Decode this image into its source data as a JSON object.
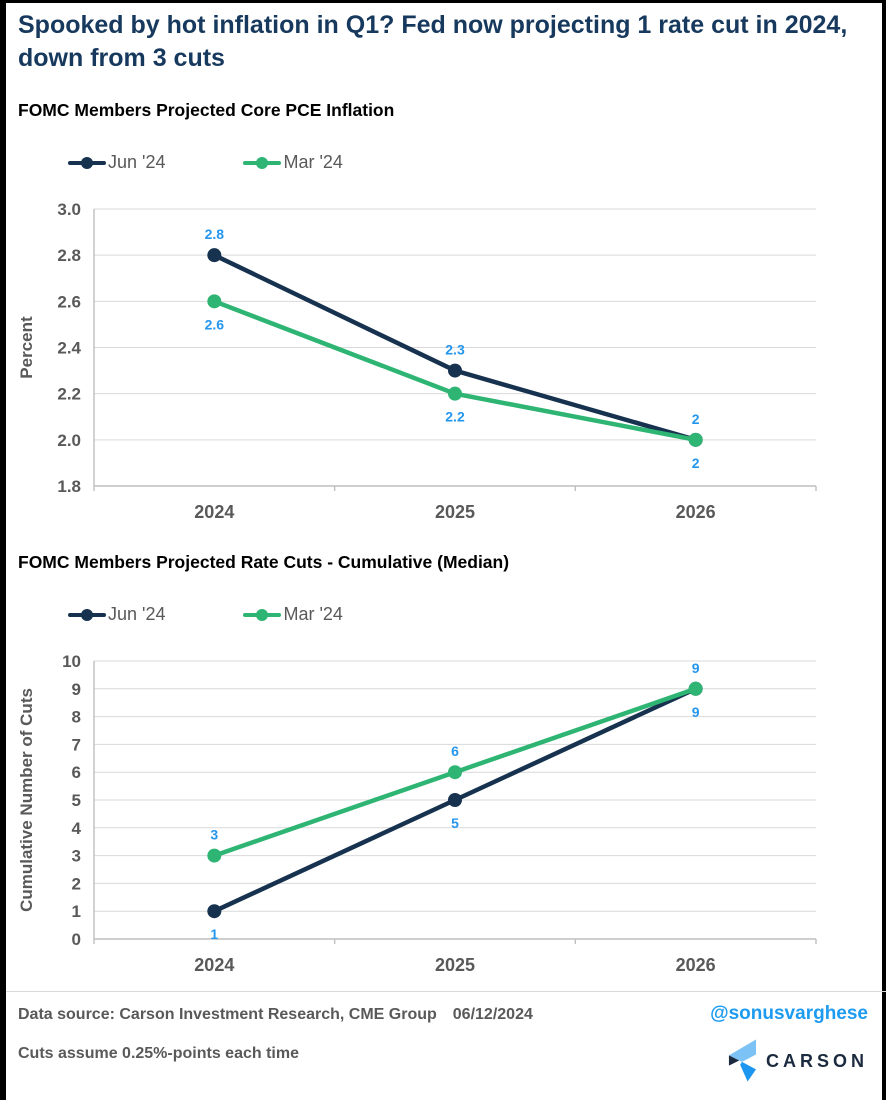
{
  "header": {
    "title": "Spooked by hot inflation in Q1? Fed now projecting 1 rate cut in 2024, down from 3 cuts"
  },
  "colors": {
    "title_navy": "#17395e",
    "jun_line": "#16324f",
    "mar_line": "#2eb573",
    "data_label_blue": "#2596ee",
    "grid": "#d9d9d9",
    "axis": "#bfbfbf",
    "gray_text": "#595959",
    "handle_blue": "#1d9bf0",
    "carson_navy": "#1b2a3e",
    "carson_light_blue": "#7cc2f5",
    "carson_blue": "#1d96f0",
    "frame_black": "#000000"
  },
  "chart_data": [
    {
      "type": "line",
      "title": "FOMC Members Projected Core PCE Inflation",
      "categories": [
        "2024",
        "2025",
        "2026"
      ],
      "series": [
        {
          "name": "Jun '24",
          "color": "#16324f",
          "values": [
            2.8,
            2.3,
            2
          ],
          "labels": [
            "2.8",
            "2.3",
            "2"
          ],
          "label_position": "above"
        },
        {
          "name": "Mar '24",
          "color": "#2eb573",
          "values": [
            2.6,
            2.2,
            2
          ],
          "labels": [
            "2.6",
            "2.2",
            "2"
          ],
          "label_position": "below"
        }
      ],
      "xlabel": "",
      "ylabel": "Percent",
      "ylim": [
        1.8,
        3.0
      ],
      "yticks": [
        1.8,
        2.0,
        2.2,
        2.4,
        2.6,
        2.8,
        3.0
      ],
      "ytick_labels": [
        "1.8",
        "2.0",
        "2.2",
        "2.4",
        "2.6",
        "2.8",
        "3.0"
      ],
      "grid": true,
      "legend_position": "top-left"
    },
    {
      "type": "line",
      "title": "FOMC Members Projected Rate Cuts - Cumulative (Median)",
      "categories": [
        "2024",
        "2025",
        "2026"
      ],
      "series": [
        {
          "name": "Jun '24",
          "color": "#16324f",
          "values": [
            1,
            5,
            9
          ],
          "labels": [
            "1",
            "5",
            "9"
          ],
          "label_position": "below"
        },
        {
          "name": "Mar '24",
          "color": "#2eb573",
          "values": [
            3,
            6,
            9
          ],
          "labels": [
            "3",
            "6",
            "9"
          ],
          "label_position": "above"
        }
      ],
      "xlabel": "",
      "ylabel": "Cumulative Number of Cuts",
      "ylim": [
        0,
        10
      ],
      "yticks": [
        0,
        1,
        2,
        3,
        4,
        5,
        6,
        7,
        8,
        9,
        10
      ],
      "ytick_labels": [
        "0",
        "1",
        "2",
        "3",
        "4",
        "5",
        "6",
        "7",
        "8",
        "9",
        "10"
      ],
      "grid": true,
      "legend_position": "top-left"
    }
  ],
  "footer": {
    "data_source": "Data source: Carson Investment Research, CME Group",
    "date": "06/12/2024",
    "note": "Cuts assume 0.25%-points each time",
    "handle": "@sonusvarghese",
    "brand": "CARSON"
  }
}
